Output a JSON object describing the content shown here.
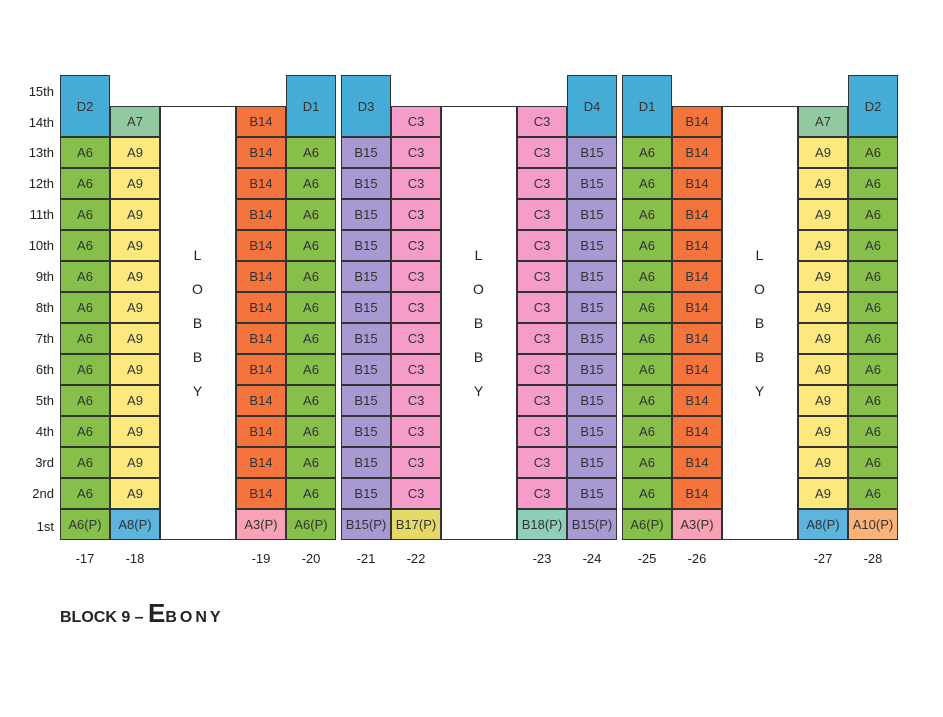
{
  "floors": [
    "15th",
    "14th",
    "13th",
    "12th",
    "11th",
    "10th",
    "9th",
    "8th",
    "7th",
    "6th",
    "5th",
    "4th",
    "3rd",
    "2nd",
    "1st"
  ],
  "lobby_letters": [
    "L",
    "O",
    "B",
    "B",
    "Y"
  ],
  "unit_colors": {
    "A6": "#86bf4a",
    "A9": "#fce97d",
    "A7": "#93c9a0",
    "D": "#44acd6",
    "B14": "#f4743c",
    "B15": "#a999d3",
    "C3": "#f59ccb",
    "A6P": "#86bf4a",
    "A8P": "#5db5de",
    "A3P": "#f7a3b5",
    "B15P": "#a999d3",
    "B17P": "#e4d866",
    "B18P": "#8fcfb7",
    "A10P": "#f9b27a"
  },
  "stacks": [
    {
      "number": "-17",
      "top": "D2",
      "upper": "A6",
      "ground": "A6(P)",
      "ground_key": "A6P",
      "upper_key": "A6",
      "top_key": "D"
    },
    {
      "number": "-18",
      "top": "A7",
      "upper": "A9",
      "ground": "A8(P)",
      "ground_key": "A8P",
      "upper_key": "A9",
      "top_key": "A7"
    },
    {
      "number": "-19",
      "top": "B14",
      "upper": "B14",
      "ground": "A3(P)",
      "ground_key": "A3P",
      "upper_key": "B14",
      "top_key": "B14"
    },
    {
      "number": "-20",
      "top": "D1",
      "upper": "A6",
      "ground": "A6(P)",
      "ground_key": "A6P",
      "upper_key": "A6",
      "top_key": "D"
    },
    {
      "number": "-21",
      "top": "D3",
      "upper": "B15",
      "ground": "B15(P)",
      "ground_key": "B15P",
      "upper_key": "B15",
      "top_key": "D"
    },
    {
      "number": "-22",
      "top": "C3",
      "upper": "C3",
      "ground": "B17(P)",
      "ground_key": "B17P",
      "upper_key": "C3",
      "top_key": "C3"
    },
    {
      "number": "-23",
      "top": "C3",
      "upper": "C3",
      "ground": "B18(P)",
      "ground_key": "B18P",
      "upper_key": "C3",
      "top_key": "C3"
    },
    {
      "number": "-24",
      "top": "D4",
      "upper": "B15",
      "ground": "B15(P)",
      "ground_key": "B15P",
      "upper_key": "B15",
      "top_key": "D"
    },
    {
      "number": "-25",
      "top": "D1",
      "upper": "A6",
      "ground": "A6(P)",
      "ground_key": "A6P",
      "upper_key": "A6",
      "top_key": "D"
    },
    {
      "number": "-26",
      "top": "B14",
      "upper": "B14",
      "ground": "A3(P)",
      "ground_key": "A3P",
      "upper_key": "B14",
      "top_key": "B14"
    },
    {
      "number": "-27",
      "top": "A7",
      "upper": "A9",
      "ground": "A8(P)",
      "ground_key": "A8P",
      "upper_key": "A9",
      "top_key": "A7"
    },
    {
      "number": "-28",
      "top": "D2",
      "upper": "A6",
      "ground": "A10(P)",
      "ground_key": "A10P",
      "upper_key": "A6",
      "top_key": "D"
    }
  ],
  "block_title": {
    "prefix": "BLOCK 9 – ",
    "big_letter": "E",
    "rest": "BONY"
  }
}
